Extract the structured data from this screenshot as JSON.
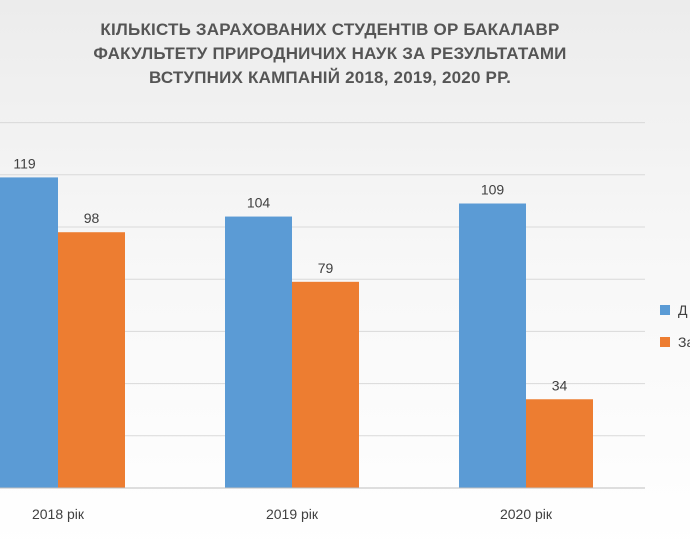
{
  "title_lines": [
    "КІЛЬКІСТЬ ЗАРАХОВАНИХ СТУДЕНТІВ ОР БАКАЛАВР",
    "ФАКУЛЬТЕТУ ПРИРОДНИЧИХ НАУК ЗА РЕЗУЛЬТАТАМИ",
    "ВСТУПНИХ КАМПАНІЙ 2018, 2019, 2020 РР."
  ],
  "legend": [
    {
      "label": "Д",
      "color": "#5B9BD5"
    },
    {
      "label": "За",
      "color": "#ED7D31"
    }
  ],
  "chart_data": {
    "type": "bar",
    "title": "КІЛЬКІСТЬ ЗАРАХОВАНИХ СТУДЕНТІВ ОР БАКАЛАВР ФАКУЛЬТЕТУ ПРИРОДНИЧИХ НАУК ЗА РЕЗУЛЬТАТАМИ ВСТУПНИХ КАМПАНІЙ 2018, 2019, 2020 РР.",
    "categories": [
      "2018 рік",
      "2019 рік",
      "2020 рік"
    ],
    "series": [
      {
        "values": [
          119,
          104,
          109
        ],
        "color": "#5B9BD5"
      },
      {
        "values": [
          98,
          79,
          34
        ],
        "color": "#ED7D31"
      }
    ],
    "ylim": [
      0,
      140
    ],
    "grid": true,
    "legend_position": "right",
    "data_labels": true
  }
}
